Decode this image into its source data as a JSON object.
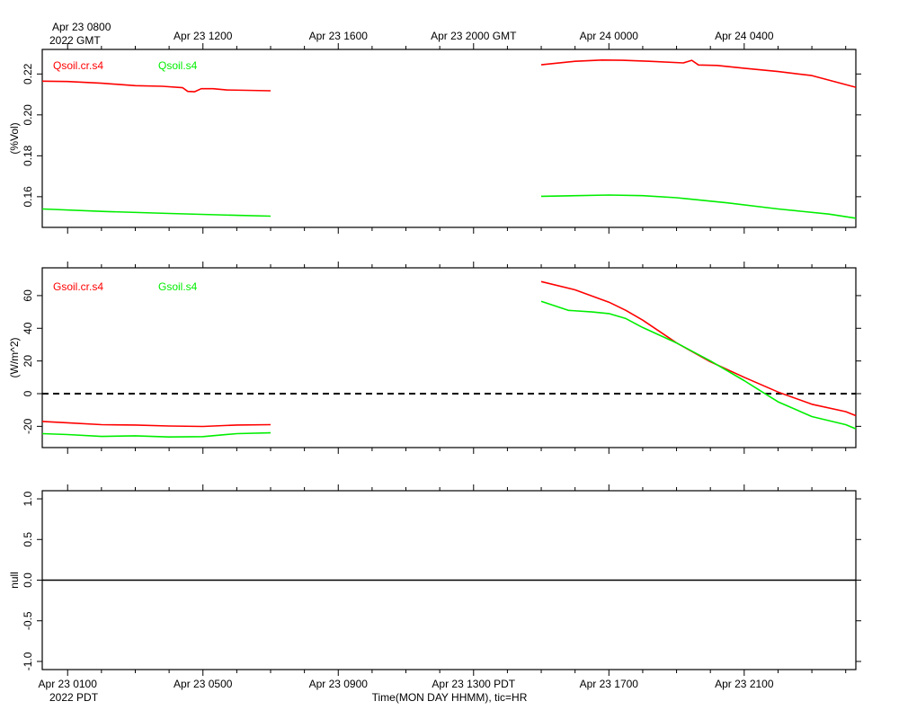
{
  "chart_data": [
    {
      "type": "line",
      "panel": "soil-moisture",
      "ylabel": "(%Vol)",
      "ylim": [
        0.145,
        0.232
      ],
      "yticks": [
        "0.16",
        "0.18",
        "0.20",
        "0.22"
      ],
      "ytick_values": [
        0.16,
        0.18,
        0.2,
        0.22
      ],
      "xlim_hours_gmt": [
        7.25,
        31.3
      ],
      "top_xlabels": [
        {
          "h": 8,
          "text": "Apr 23 0800"
        },
        {
          "h": 12,
          "text": "Apr 23 1200"
        },
        {
          "h": 16,
          "text": "Apr 23 1600"
        },
        {
          "h": 20,
          "text": "Apr 23 2000 GMT"
        },
        {
          "h": 24,
          "text": "Apr 24 0000"
        },
        {
          "h": 28,
          "text": "Apr 24 0400"
        }
      ],
      "top_year_label": "2022 GMT",
      "series": [
        {
          "name": "Qsoil.cr.s4",
          "color": "#ff0000",
          "segments": [
            [
              [
                7.25,
                0.2165
              ],
              [
                8,
                0.2163
              ],
              [
                9,
                0.2155
              ],
              [
                10,
                0.2143
              ],
              [
                10.8,
                0.214
              ],
              [
                11.4,
                0.2133
              ],
              [
                11.55,
                0.2115
              ],
              [
                11.75,
                0.2113
              ],
              [
                11.95,
                0.2128
              ],
              [
                12.3,
                0.2128
              ],
              [
                12.7,
                0.2122
              ],
              [
                13.3,
                0.212
              ],
              [
                14.0,
                0.2118
              ]
            ],
            [
              [
                22.0,
                0.2245
              ],
              [
                23.0,
                0.2262
              ],
              [
                23.8,
                0.2268
              ],
              [
                24.4,
                0.2267
              ],
              [
                25.2,
                0.2262
              ],
              [
                26.2,
                0.2254
              ],
              [
                26.45,
                0.2267
              ],
              [
                26.65,
                0.2244
              ],
              [
                27.2,
                0.2242
              ],
              [
                28,
                0.2228
              ],
              [
                29,
                0.2212
              ],
              [
                30,
                0.2192
              ],
              [
                31.3,
                0.2135
              ]
            ]
          ]
        },
        {
          "name": "Qsoil.s4",
          "color": "#00ee00",
          "segments": [
            [
              [
                7.25,
                0.154
              ],
              [
                9,
                0.1528
              ],
              [
                11,
                0.1518
              ],
              [
                13,
                0.1509
              ],
              [
                14.0,
                0.1505
              ]
            ],
            [
              [
                22.0,
                0.1602
              ],
              [
                24,
                0.1608
              ],
              [
                25,
                0.1605
              ],
              [
                26,
                0.1595
              ],
              [
                27.5,
                0.157
              ],
              [
                29,
                0.154
              ],
              [
                30.5,
                0.1515
              ],
              [
                31.3,
                0.1495
              ]
            ]
          ]
        }
      ]
    },
    {
      "type": "line",
      "panel": "soil-heat-flux",
      "ylabel": "(W/m^2)",
      "ylim": [
        -33,
        77
      ],
      "yticks": [
        "-20",
        "0",
        "20",
        "40",
        "60"
      ],
      "ytick_values": [
        -20,
        0,
        20,
        40,
        60
      ],
      "zero_line": 0,
      "xlim_hours_gmt": [
        7.25,
        31.3
      ],
      "series": [
        {
          "name": "Gsoil.cr.s4",
          "color": "#ff0000",
          "segments": [
            [
              [
                7.25,
                -17
              ],
              [
                8,
                -17.8
              ],
              [
                9,
                -19
              ],
              [
                10,
                -19.2
              ],
              [
                11,
                -19.8
              ],
              [
                12,
                -20.1
              ],
              [
                13,
                -19.2
              ],
              [
                14.0,
                -19
              ]
            ],
            [
              [
                22.0,
                68.6
              ],
              [
                23,
                63.5
              ],
              [
                24,
                56
              ],
              [
                24.5,
                51
              ],
              [
                25,
                45
              ],
              [
                26,
                31
              ],
              [
                27,
                19.5
              ],
              [
                28,
                10
              ],
              [
                29,
                1
              ],
              [
                30,
                -6.5
              ],
              [
                31,
                -11
              ],
              [
                31.3,
                -13.5
              ]
            ]
          ]
        },
        {
          "name": "Gsoil.s4",
          "color": "#00ee00",
          "segments": [
            [
              [
                7.25,
                -24.5
              ],
              [
                8,
                -25
              ],
              [
                9,
                -26.2
              ],
              [
                10,
                -25.8
              ],
              [
                11,
                -26.5
              ],
              [
                12,
                -26.3
              ],
              [
                13,
                -24.5
              ],
              [
                14.0,
                -24
              ]
            ],
            [
              [
                22.0,
                56.5
              ],
              [
                22.8,
                51
              ],
              [
                23.5,
                50
              ],
              [
                24,
                49
              ],
              [
                24.5,
                46
              ],
              [
                25,
                40.5
              ],
              [
                26,
                31
              ],
              [
                27,
                20
              ],
              [
                28,
                8
              ],
              [
                28.5,
                1.5
              ],
              [
                29,
                -5
              ],
              [
                30,
                -14
              ],
              [
                31,
                -19
              ],
              [
                31.3,
                -21.5
              ]
            ]
          ]
        }
      ]
    },
    {
      "type": "line",
      "panel": "null",
      "ylabel": "null",
      "ylim": [
        -1.1,
        1.1
      ],
      "yticks": [
        "-1.0",
        "-0.5",
        "0.0",
        "0.5",
        "1.0"
      ],
      "ytick_values": [
        -1.0,
        -0.5,
        0.0,
        0.5,
        1.0
      ],
      "xlim_hours_gmt": [
        7.25,
        31.3
      ],
      "bottom_xlabels": [
        {
          "h": 8,
          "text": "Apr 23 0100"
        },
        {
          "h": 12,
          "text": "Apr 23 0500"
        },
        {
          "h": 16,
          "text": "Apr 23 0900"
        },
        {
          "h": 20,
          "text": "Apr 23 1300 PDT"
        },
        {
          "h": 24,
          "text": "Apr 23 1700"
        },
        {
          "h": 28,
          "text": "Apr 23 2100"
        }
      ],
      "bottom_year_label": "2022 PDT",
      "xlabel": "Time(MON DAY HHMM), tic=HR",
      "series": [
        {
          "name": "null",
          "color": "#000000",
          "segments": [
            [
              [
                7.25,
                0
              ],
              [
                31.3,
                0
              ]
            ]
          ]
        }
      ]
    }
  ]
}
